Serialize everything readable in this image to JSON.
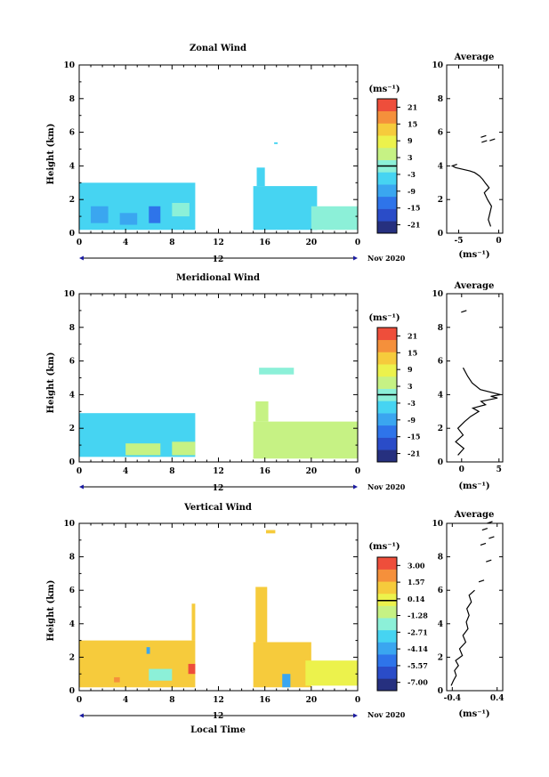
{
  "chart_data": [
    {
      "type": "heatmap",
      "title": "Zonal Wind",
      "xlabel": "",
      "ylabel": "Height (km)",
      "x_ticks": [
        "0",
        "4",
        "8",
        "12",
        "16",
        "20",
        "0"
      ],
      "day_label": "12",
      "date_label": "Nov 2020",
      "y_ticks": [
        "0",
        "2",
        "4",
        "6",
        "8",
        "10"
      ],
      "ylim": [
        0,
        10
      ],
      "colorbar": {
        "unit": "(ms⁻¹)",
        "labels": [
          "21",
          "15",
          "9",
          "3",
          "-3",
          "-9",
          "-15",
          "-21"
        ],
        "range": [
          -24,
          24
        ]
      },
      "blocks": [
        {
          "x": [
            0,
            10
          ],
          "y": [
            0.2,
            3.0
          ],
          "value": -4
        },
        {
          "x": [
            1,
            2.5
          ],
          "y": [
            0.6,
            1.6
          ],
          "value": -9
        },
        {
          "x": [
            3.5,
            5
          ],
          "y": [
            0.5,
            1.2
          ],
          "value": -8
        },
        {
          "x": [
            6,
            7
          ],
          "y": [
            0.6,
            1.6
          ],
          "value": -12
        },
        {
          "x": [
            8,
            9.5
          ],
          "y": [
            1.0,
            1.8
          ],
          "value": 2
        },
        {
          "x": [
            15,
            20.5
          ],
          "y": [
            0.2,
            2.8
          ],
          "value": -3
        },
        {
          "x": [
            15.3,
            16
          ],
          "y": [
            2.8,
            3.9
          ],
          "value": -6
        },
        {
          "x": [
            20,
            24
          ],
          "y": [
            0.2,
            1.6
          ],
          "value": -2
        },
        {
          "x": [
            16.8,
            17.1
          ],
          "y": [
            5.3,
            5.4
          ],
          "value": -3
        }
      ],
      "profile": {
        "title": "Average",
        "xlabel": "(ms⁻¹)",
        "x_ticks": [
          "-5",
          "0"
        ],
        "xlim": [
          -6.5,
          0.5
        ],
        "x": [
          -1.0,
          -1.3,
          -1.1,
          -0.9,
          -1.4,
          -1.8,
          -1.2,
          -1.7,
          -2.0,
          -2.4,
          -3.0,
          -3.6,
          -4.5,
          -5.4,
          -5.8,
          -5.2
        ],
        "y": [
          0.4,
          0.8,
          1.2,
          1.6,
          2.0,
          2.4,
          2.7,
          3.0,
          3.2,
          3.4,
          3.6,
          3.7,
          3.8,
          3.9,
          4.0,
          4.1
        ],
        "extra_x": [
          -1.8,
          -0.8,
          -1.9
        ],
        "extra_y": [
          5.4,
          5.5,
          5.7
        ]
      }
    },
    {
      "type": "heatmap",
      "title": "Meridional Wind",
      "xlabel": "",
      "ylabel": "Height (km)",
      "x_ticks": [
        "0",
        "4",
        "8",
        "12",
        "16",
        "20",
        "0"
      ],
      "day_label": "12",
      "date_label": "Nov 2020",
      "y_ticks": [
        "0",
        "2",
        "4",
        "6",
        "8",
        "10"
      ],
      "ylim": [
        0,
        10
      ],
      "colorbar": {
        "unit": "(ms⁻¹)",
        "labels": [
          "21",
          "15",
          "9",
          "3",
          "-3",
          "-9",
          "-15",
          "-21"
        ],
        "range": [
          -24,
          24
        ]
      },
      "blocks": [
        {
          "x": [
            0,
            10
          ],
          "y": [
            0.3,
            2.9
          ],
          "value": -4
        },
        {
          "x": [
            0.8,
            3.5
          ],
          "y": [
            1.4,
            2.4
          ],
          "value": -6
        },
        {
          "x": [
            4,
            7
          ],
          "y": [
            0.4,
            1.1
          ],
          "value": 3
        },
        {
          "x": [
            8,
            10
          ],
          "y": [
            0.4,
            1.2
          ],
          "value": 4
        },
        {
          "x": [
            15,
            24
          ],
          "y": [
            0.2,
            2.4
          ],
          "value": 3
        },
        {
          "x": [
            15.2,
            16.3
          ],
          "y": [
            2.4,
            3.6
          ],
          "value": 5
        },
        {
          "x": [
            16.5,
            20
          ],
          "y": [
            1.5,
            2.2
          ],
          "value": 6
        },
        {
          "x": [
            15.5,
            18.5
          ],
          "y": [
            5.2,
            5.6
          ],
          "value": -2
        }
      ],
      "profile": {
        "title": "Average",
        "xlabel": "(ms⁻¹)",
        "x_ticks": [
          "0",
          "5"
        ],
        "xlim": [
          -2,
          5.5
        ],
        "x": [
          -0.5,
          0.3,
          -0.8,
          0.2,
          -0.5,
          0.4,
          1.2,
          2.3,
          1.5,
          3.2,
          2.6,
          4.8,
          3.9,
          5.2,
          2.5,
          1.4,
          0.8,
          0.2
        ],
        "y": [
          0.4,
          0.8,
          1.2,
          1.6,
          2.0,
          2.4,
          2.7,
          3.0,
          3.2,
          3.4,
          3.6,
          3.8,
          3.9,
          4.0,
          4.3,
          4.7,
          5.1,
          5.6
        ],
        "extra_x": [
          0.3
        ],
        "extra_y": [
          8.9
        ]
      }
    },
    {
      "type": "heatmap",
      "title": "Vertical Wind",
      "xlabel": "Local Time",
      "ylabel": "Height (km)",
      "x_ticks": [
        "0",
        "4",
        "8",
        "12",
        "16",
        "20",
        "0"
      ],
      "day_label": "12",
      "date_label": "Nov 2020",
      "y_ticks": [
        "0",
        "2",
        "4",
        "6",
        "8",
        "10"
      ],
      "ylim": [
        0,
        10
      ],
      "colorbar": {
        "unit": "(ms⁻¹)",
        "labels": [
          "3.00",
          "1.57",
          "0.14",
          "-1.28",
          "-2.71",
          "-4.14",
          "-5.57",
          "-7.00"
        ],
        "range": [
          -7.71,
          3.71
        ]
      },
      "blocks": [
        {
          "x": [
            0,
            10
          ],
          "y": [
            0.2,
            3.0
          ],
          "value": 0.9
        },
        {
          "x": [
            6,
            8
          ],
          "y": [
            0.6,
            1.3
          ],
          "value": -2.0
        },
        {
          "x": [
            9.4,
            10
          ],
          "y": [
            1.0,
            1.6
          ],
          "value": 3.2
        },
        {
          "x": [
            3,
            3.5
          ],
          "y": [
            0.5,
            0.8
          ],
          "value": 1.7
        },
        {
          "x": [
            5.8,
            6.1
          ],
          "y": [
            2.2,
            2.6
          ],
          "value": -4.5
        },
        {
          "x": [
            15,
            20
          ],
          "y": [
            0.2,
            2.9
          ],
          "value": 1.0
        },
        {
          "x": [
            15.2,
            16.2
          ],
          "y": [
            2.9,
            6.2
          ],
          "value": 0.6
        },
        {
          "x": [
            17.5,
            18.2
          ],
          "y": [
            0.2,
            1.0
          ],
          "value": -4.3
        },
        {
          "x": [
            19.5,
            24
          ],
          "y": [
            0.3,
            1.8
          ],
          "value": 0.0
        },
        {
          "x": [
            9.7,
            10
          ],
          "y": [
            3.0,
            5.2
          ],
          "value": 0.8
        },
        {
          "x": [
            16.1,
            16.9
          ],
          "y": [
            9.4,
            9.6
          ],
          "value": 0.8
        }
      ],
      "profile": {
        "title": "Average",
        "xlabel": "(ms⁻¹)",
        "x_ticks": [
          "-0.4",
          "0.4"
        ],
        "xlim": [
          -0.5,
          0.5
        ],
        "x": [
          -0.42,
          -0.38,
          -0.33,
          -0.36,
          -0.29,
          -0.34,
          -0.22,
          -0.27,
          -0.16,
          -0.21,
          -0.12,
          -0.15,
          -0.1,
          -0.14,
          -0.06,
          -0.1,
          0.0
        ],
        "y": [
          0.3,
          0.6,
          0.9,
          1.2,
          1.5,
          1.8,
          2.1,
          2.5,
          2.9,
          3.3,
          3.7,
          4.1,
          4.5,
          4.9,
          5.3,
          5.7,
          6.0
        ],
        "extra_x": [
          0.12,
          0.25,
          0.15,
          0.3,
          0.18,
          0.27
        ],
        "extra_y": [
          6.5,
          7.7,
          8.7,
          9.1,
          9.6,
          10.0
        ]
      }
    }
  ]
}
